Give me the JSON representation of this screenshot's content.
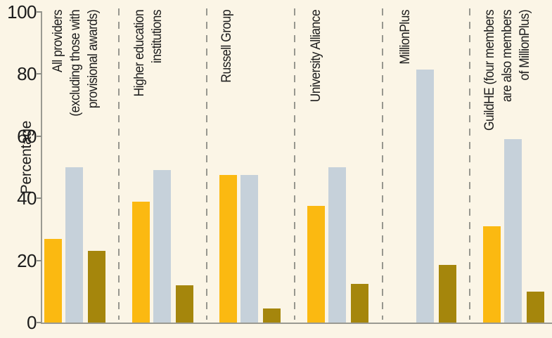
{
  "chart_data": {
    "type": "bar",
    "title": "",
    "xlabel": "",
    "ylabel": "Percentage",
    "ylim": [
      0,
      100
    ],
    "yticks": [
      0,
      20,
      40,
      60,
      80,
      100
    ],
    "grid": false,
    "legend": "none",
    "group_separators": "dashed vertical lines between category groups",
    "categories": [
      "All providers (excluding those with provisional awards)",
      "Higher education institutions",
      "Russell Group",
      "University Alliance",
      "MillionPlus",
      "GuildHE (four members are also members of MillionPlus)"
    ],
    "category_label_lines": [
      [
        "All providers",
        "(excluding those with",
        "provisional awards)"
      ],
      [
        "Higher education",
        "institutions"
      ],
      [
        "Russell Group"
      ],
      [
        "University Alliance"
      ],
      [
        "MillionPlus"
      ],
      [
        "GuildHE (four members",
        "are also members",
        "of MillionPlus)"
      ]
    ],
    "series": [
      {
        "name": "amber",
        "color": "#FBB911",
        "values": [
          27,
          39,
          47.5,
          37.5,
          0,
          31
        ]
      },
      {
        "name": "light-blue-gray",
        "color": "#C6D1DA",
        "values": [
          50,
          49,
          47.5,
          50,
          81.5,
          59
        ]
      },
      {
        "name": "dark-gold",
        "color": "#A5860C",
        "values": [
          23,
          12,
          4.5,
          12.5,
          18.5,
          10
        ]
      }
    ]
  },
  "colors": {
    "background": "#FBF5E6",
    "axis": "#9A9A92",
    "text": "#1C1C1C"
  }
}
